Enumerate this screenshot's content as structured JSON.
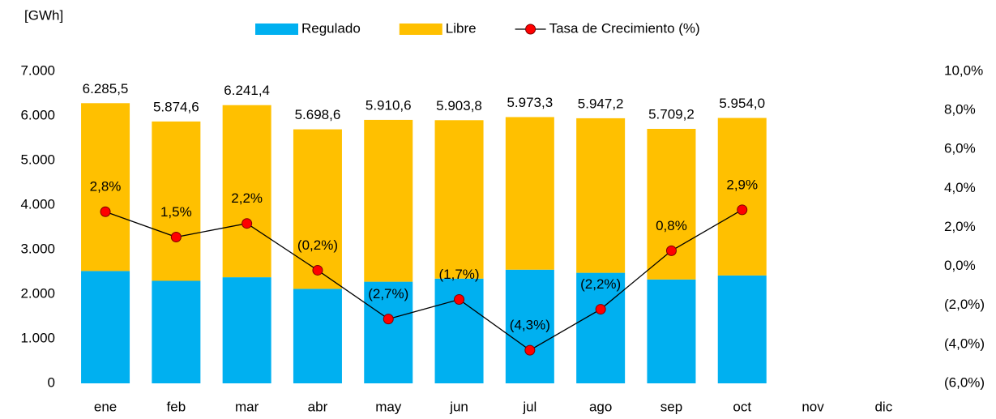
{
  "chart_data": {
    "type": "bar",
    "stacked": true,
    "unit_label": "[GWh]",
    "categories": [
      "ene",
      "feb",
      "mar",
      "abr",
      "may",
      "jun",
      "jul",
      "ago",
      "sep",
      "oct",
      "nov",
      "dic"
    ],
    "series": [
      {
        "name": "Regulado",
        "type": "bar",
        "color": "#00b0f0",
        "values": [
          2520,
          2300,
          2380,
          2120,
          2280,
          2350,
          2550,
          2480,
          2330,
          2420,
          null,
          null
        ]
      },
      {
        "name": "Libre",
        "type": "bar",
        "color": "#ffc000",
        "values": [
          3765.5,
          3574.6,
          3861.4,
          3578.6,
          3630.6,
          3553.8,
          3423.3,
          3467.2,
          3379.2,
          3534.0,
          null,
          null
        ]
      },
      {
        "name": "Tasa de Crecimiento (%)",
        "type": "line",
        "axis": "y2",
        "color": "#000000",
        "marker_color": "#ff0000",
        "values": [
          2.8,
          1.5,
          2.2,
          -0.2,
          -2.7,
          -1.7,
          -4.3,
          -2.2,
          0.8,
          2.9,
          null,
          null
        ],
        "value_labels": [
          "2,8%",
          "1,5%",
          "2,2%",
          "(0,2%)",
          "(2,7%)",
          "(1,7%)",
          "(4,3%)",
          "(2,2%)",
          "0,8%",
          "2,9%",
          null,
          null
        ]
      }
    ],
    "totals": [
      6285.5,
      5874.6,
      6241.4,
      5698.6,
      5910.6,
      5903.8,
      5973.3,
      5947.2,
      5709.2,
      5954.0,
      null,
      null
    ],
    "total_labels": [
      "6.285,5",
      "5.874,6",
      "6.241,4",
      "5.698,6",
      "5.910,6",
      "5.903,8",
      "5.973,3",
      "5.947,2",
      "5.709,2",
      "5.954,0",
      null,
      null
    ],
    "ylim": [
      0,
      7000
    ],
    "yticks": [
      0,
      {
        "value": 1000,
        "label": "1.000"
      },
      {
        "value": 2000,
        "label": "2.000"
      },
      {
        "value": 3000,
        "label": "3.000"
      },
      {
        "value": 4000,
        "label": "4.000"
      },
      {
        "value": 5000,
        "label": "5.000"
      },
      {
        "value": 6000,
        "label": "6.000"
      },
      {
        "value": 7000,
        "label": "7.000"
      }
    ],
    "y2lim": [
      -6,
      10
    ],
    "y2ticks": [
      {
        "value": -6,
        "label": "(6,0%)"
      },
      {
        "value": -4,
        "label": "(4,0%)"
      },
      {
        "value": -2,
        "label": "(2,0%)"
      },
      {
        "value": 0,
        "label": "0,0%"
      },
      {
        "value": 2,
        "label": "2,0%"
      },
      {
        "value": 4,
        "label": "4,0%"
      },
      {
        "value": 6,
        "label": "6,0%"
      },
      {
        "value": 8,
        "label": "8,0%"
      },
      {
        "value": 10,
        "label": "10,0%"
      }
    ],
    "negative_color": "#ff0000",
    "grid": false,
    "legend": "top"
  }
}
